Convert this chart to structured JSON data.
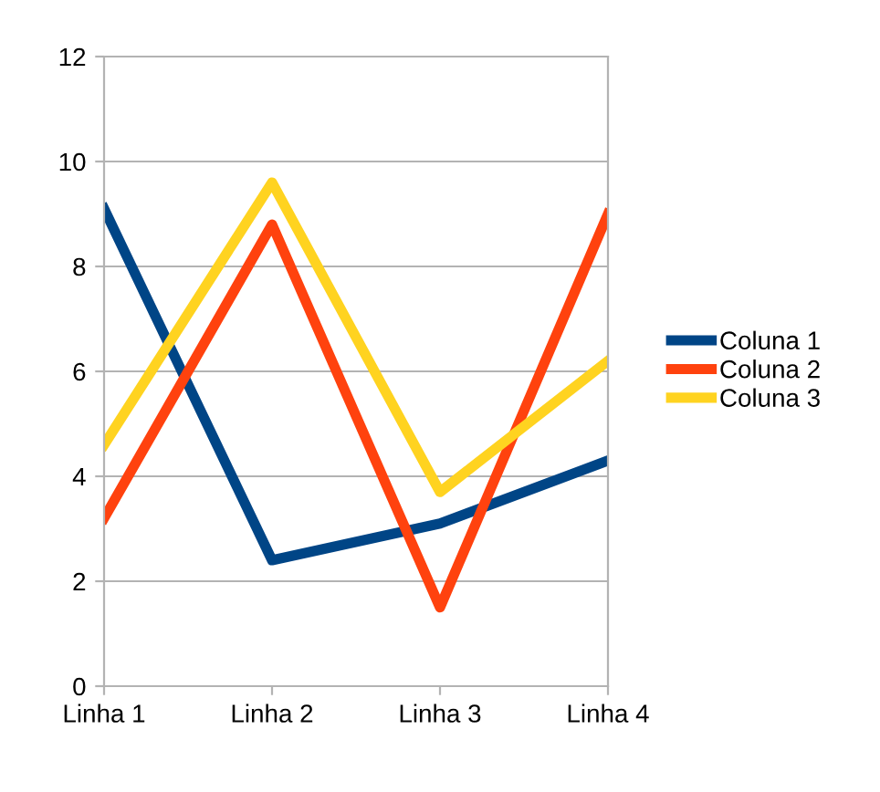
{
  "chart_data": {
    "type": "line",
    "categories": [
      "Linha 1",
      "Linha 2",
      "Linha 3",
      "Linha 4"
    ],
    "series": [
      {
        "name": "Coluna 1",
        "color": "#004586",
        "values": [
          9.1,
          2.4,
          3.1,
          4.3
        ]
      },
      {
        "name": "Coluna 2",
        "color": "#ff420e",
        "values": [
          3.2,
          8.8,
          1.5,
          9.0
        ]
      },
      {
        "name": "Coluna 3",
        "color": "#ffd320",
        "values": [
          4.6,
          9.6,
          3.7,
          6.2
        ]
      }
    ],
    "ylim": [
      0,
      12
    ],
    "yticks": [
      0,
      2,
      4,
      6,
      8,
      10,
      12
    ],
    "grid": "y",
    "legend": "right",
    "marker": "none",
    "line_style": "solid"
  }
}
